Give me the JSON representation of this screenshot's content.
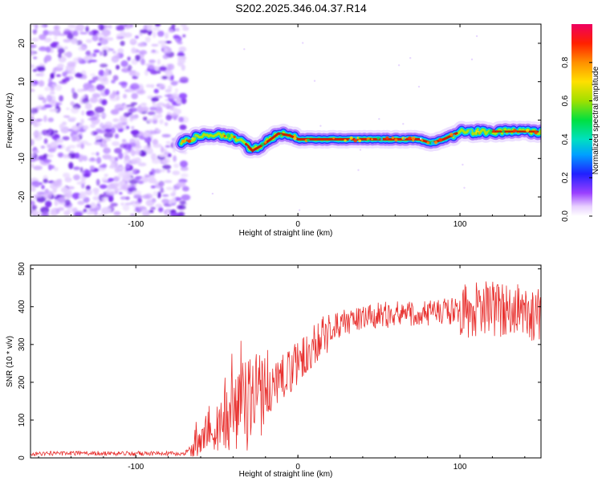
{
  "title": "S202.2025.346.04.37.R14",
  "colors": {
    "snr_line": "#e8302e",
    "spectrum_noise": "#8a3cff",
    "spectrum_track": "#cc0000"
  },
  "chart_data": [
    {
      "type": "heatmap",
      "title": "S202.2025.346.04.37.R14",
      "xlabel": "Height of straight line (km)",
      "ylabel": "Frequency (Hz)",
      "colorbar_label": "Normalized spectral amplitude",
      "xlim": [
        -165,
        150
      ],
      "ylim": [
        -25,
        25
      ],
      "clim": [
        0,
        1
      ],
      "x_ticks": [
        -100,
        0,
        100
      ],
      "y_ticks": [
        -20,
        -10,
        0,
        10,
        20
      ],
      "colorbar_ticks": [
        0.0,
        0.2,
        0.4,
        0.6,
        0.8
      ],
      "noise_region_x": [
        -165,
        -72
      ],
      "tone_track": {
        "x": [
          -72,
          -60,
          -45,
          -35,
          -28,
          -20,
          -12,
          -5,
          0,
          20,
          40,
          60,
          75,
          82,
          90,
          100,
          110,
          125,
          135,
          150
        ],
        "freq": [
          -6,
          -4,
          -4,
          -5,
          -8,
          -6,
          -3.5,
          -4,
          -5,
          -5,
          -5,
          -5,
          -5,
          -6,
          -5,
          -3,
          -3,
          -3,
          -3,
          -3
        ]
      }
    },
    {
      "type": "line",
      "xlabel": "Height of straight line (km)",
      "ylabel": "SNR (10 * v/v)",
      "xlim": [
        -165,
        150
      ],
      "ylim": [
        0,
        510
      ],
      "x_ticks": [
        -100,
        0,
        100
      ],
      "y_ticks": [
        0,
        100,
        200,
        300,
        400,
        500
      ],
      "envelope": {
        "x": [
          -165,
          -130,
          -100,
          -70,
          -65,
          -55,
          -40,
          -30,
          -20,
          -10,
          0,
          10,
          20,
          30,
          40,
          60,
          80,
          100,
          120,
          140,
          150
        ],
        "snr": [
          12,
          12,
          12,
          12,
          30,
          60,
          110,
          150,
          170,
          210,
          250,
          300,
          340,
          360,
          375,
          380,
          385,
          390,
          395,
          385,
          380
        ]
      }
    }
  ]
}
